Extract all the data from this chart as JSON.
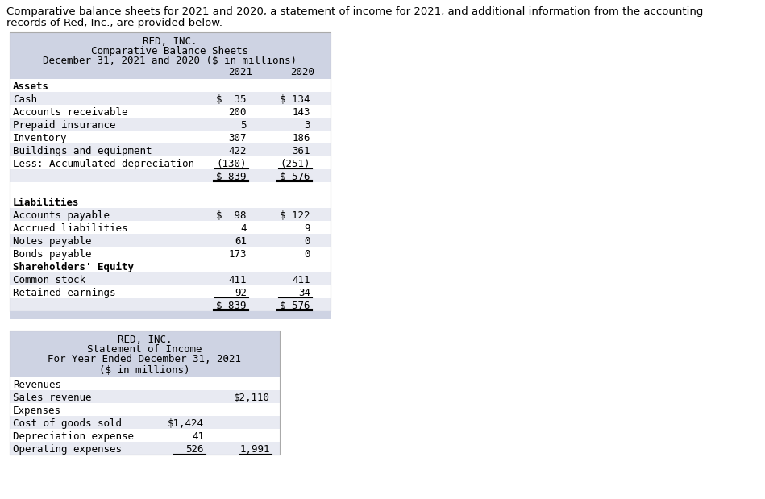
{
  "bg_color": "#ffffff",
  "header_bg": "#ced3e3",
  "row_bg_alt": "#e8eaf2",
  "row_bg_white": "#ffffff",
  "intro_line1": "Comparative balance sheets for 2021 and 2020, a statement of income for 2021, and additional information from the accounting",
  "intro_line2": "records of Red, Inc., are provided below.",
  "bs_title1": "RED, INC.",
  "bs_title2": "Comparative Balance Sheets",
  "bs_title3": "December 31, 2021 and 2020 ($ in millions)",
  "bs_col1": "2021",
  "bs_col2": "2020",
  "bs_rows": [
    {
      "label": "Assets",
      "v1": "",
      "v2": "",
      "style": "bold_header"
    },
    {
      "label": "Cash",
      "v1": "$  35",
      "v2": "$ 134",
      "style": "row"
    },
    {
      "label": "Accounts receivable",
      "v1": "200",
      "v2": "143",
      "style": "row"
    },
    {
      "label": "Prepaid insurance",
      "v1": "5",
      "v2": "3",
      "style": "row"
    },
    {
      "label": "Inventory",
      "v1": "307",
      "v2": "186",
      "style": "row"
    },
    {
      "label": "Buildings and equipment",
      "v1": "422",
      "v2": "361",
      "style": "row"
    },
    {
      "label": "Less: Accumulated depreciation",
      "v1": "(130)",
      "v2": "(251)",
      "style": "underline"
    },
    {
      "label": "",
      "v1": "$ 839",
      "v2": "$ 576",
      "style": "double_total"
    },
    {
      "label": "",
      "v1": "",
      "v2": "",
      "style": "spacer"
    },
    {
      "label": "Liabilities",
      "v1": "",
      "v2": "",
      "style": "bold_header"
    },
    {
      "label": "Accounts payable",
      "v1": "$  98",
      "v2": "$ 122",
      "style": "row"
    },
    {
      "label": "Accrued liabilities",
      "v1": "4",
      "v2": "9",
      "style": "row"
    },
    {
      "label": "Notes payable",
      "v1": "61",
      "v2": "0",
      "style": "row"
    },
    {
      "label": "Bonds payable",
      "v1": "173",
      "v2": "0",
      "style": "row"
    },
    {
      "label": "Shareholders' Equity",
      "v1": "",
      "v2": "",
      "style": "bold_header"
    },
    {
      "label": "Common stock",
      "v1": "411",
      "v2": "411",
      "style": "row"
    },
    {
      "label": "Retained earnings",
      "v1": "92",
      "v2": "34",
      "style": "underline"
    },
    {
      "label": "",
      "v1": "$ 839",
      "v2": "$ 576",
      "style": "double_total"
    }
  ],
  "is_title1": "RED, INC.",
  "is_title2": "Statement of Income",
  "is_title3": "For Year Ended December 31, 2021",
  "is_title4": "($ in millions)",
  "is_rows": [
    {
      "label": "Revenues",
      "c1": "",
      "c2": "",
      "style": "plain"
    },
    {
      "label": "Sales revenue",
      "c1": "",
      "c2": "$2,110",
      "style": "row"
    },
    {
      "label": "Expenses",
      "c1": "",
      "c2": "",
      "style": "plain"
    },
    {
      "label": "Cost of goods sold",
      "c1": "$1,424",
      "c2": "",
      "style": "row"
    },
    {
      "label": "Depreciation expense",
      "c1": "41",
      "c2": "",
      "style": "row"
    },
    {
      "label": "Operating expenses",
      "c1": "526",
      "c2": "1,991",
      "style": "underline"
    }
  ]
}
